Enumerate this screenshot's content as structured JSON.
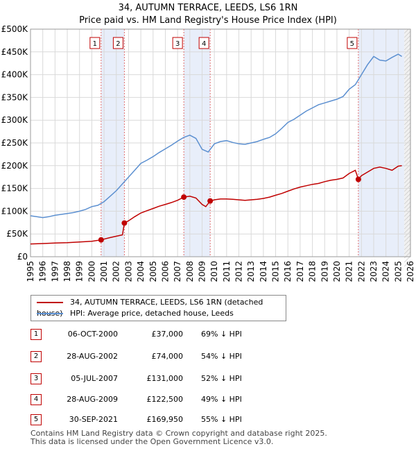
{
  "title": "34, AUTUMN TERRACE, LEEDS, LS6 1RN",
  "subtitle": "Price paid vs. HM Land Registry's House Price Index (HPI)",
  "legend": {
    "property_label": "34, AUTUMN TERRACE, LEEDS, LS6 1RN (detached house)",
    "hpi_label": "HPI: Average price, detached house, Leeds"
  },
  "colors": {
    "property": "#c00000",
    "hpi": "#5b8fd0",
    "shade": "#e8eefa",
    "grid": "#d9d9d9",
    "marker_line": "#e07070"
  },
  "sales": [
    {
      "num": "1",
      "date": "06-OCT-2000",
      "price": "£37,000",
      "pct": "69% ↓ HPI"
    },
    {
      "num": "2",
      "date": "28-AUG-2002",
      "price": "£74,000",
      "pct": "54% ↓ HPI"
    },
    {
      "num": "3",
      "date": "05-JUL-2007",
      "price": "£131,000",
      "pct": "52% ↓ HPI"
    },
    {
      "num": "4",
      "date": "28-AUG-2009",
      "price": "£122,500",
      "pct": "49% ↓ HPI"
    },
    {
      "num": "5",
      "date": "30-SEP-2021",
      "price": "£169,950",
      "pct": "55% ↓ HPI"
    }
  ],
  "footer": {
    "line1": "Contains HM Land Registry data © Crown copyright and database right 2025.",
    "line2": "This data is licensed under the Open Government Licence v3.0."
  },
  "chart_data": {
    "type": "line",
    "title": "34, AUTUMN TERRACE, LEEDS, LS6 1RN",
    "xlabel": "",
    "ylabel": "",
    "xlim": [
      1995,
      2026
    ],
    "ylim": [
      0,
      500000
    ],
    "x_ticks": [
      1995,
      1996,
      1997,
      1998,
      1999,
      2000,
      2001,
      2002,
      2003,
      2004,
      2005,
      2006,
      2007,
      2008,
      2009,
      2010,
      2011,
      2012,
      2013,
      2014,
      2015,
      2016,
      2017,
      2018,
      2019,
      2020,
      2021,
      2022,
      2023,
      2024,
      2025,
      2026
    ],
    "y_ticks": [
      {
        "value": 0,
        "label": "£0"
      },
      {
        "value": 50000,
        "label": "£50K"
      },
      {
        "value": 100000,
        "label": "£100K"
      },
      {
        "value": 150000,
        "label": "£150K"
      },
      {
        "value": 200000,
        "label": "£200K"
      },
      {
        "value": 250000,
        "label": "£250K"
      },
      {
        "value": 300000,
        "label": "£300K"
      },
      {
        "value": 350000,
        "label": "£350K"
      },
      {
        "value": 400000,
        "label": "£400K"
      },
      {
        "value": 450000,
        "label": "£450K"
      },
      {
        "value": 500000,
        "label": "£500K"
      }
    ],
    "grid": true,
    "legend_position": "below",
    "shaded_periods": [
      [
        2000.76,
        2002.66
      ],
      [
        2007.51,
        2009.66
      ],
      [
        2021.75,
        2025.5
      ]
    ],
    "future_region_start": 2025.5,
    "series": [
      {
        "name": "HPI: Average price, detached house, Leeds",
        "x": [
          1995,
          1995.5,
          1996,
          1996.5,
          1997,
          1997.5,
          1998,
          1998.5,
          1999,
          1999.5,
          2000,
          2000.5,
          2001,
          2001.5,
          2002,
          2002.5,
          2003,
          2003.5,
          2004,
          2004.5,
          2005,
          2005.5,
          2006,
          2006.5,
          2007,
          2007.5,
          2008,
          2008.5,
          2009,
          2009.5,
          2010,
          2010.5,
          2011,
          2011.5,
          2012,
          2012.5,
          2013,
          2013.5,
          2014,
          2014.5,
          2015,
          2015.5,
          2016,
          2016.5,
          2017,
          2017.5,
          2018,
          2018.5,
          2019,
          2019.5,
          2020,
          2020.5,
          2021,
          2021.5,
          2022,
          2022.5,
          2023,
          2023.5,
          2024,
          2024.5,
          2025,
          2025.3
        ],
        "values": [
          90000,
          88000,
          86000,
          88000,
          91000,
          93000,
          95000,
          97000,
          100000,
          104000,
          110000,
          113000,
          121000,
          133000,
          145000,
          160000,
          175000,
          190000,
          205000,
          212000,
          220000,
          229000,
          237000,
          245000,
          254000,
          262000,
          267000,
          260000,
          236000,
          230000,
          248000,
          253000,
          255000,
          251000,
          248000,
          247000,
          250000,
          253000,
          258000,
          262000,
          270000,
          282000,
          295000,
          302000,
          311000,
          320000,
          327000,
          334000,
          338000,
          342000,
          346000,
          352000,
          368000,
          378000,
          400000,
          422000,
          440000,
          432000,
          430000,
          438000,
          445000,
          440000
        ]
      },
      {
        "name": "34, AUTUMN TERRACE, LEEDS, LS6 1RN (detached house)",
        "x": [
          1995,
          1996,
          1997,
          1998,
          1999,
          2000,
          2000.76,
          2001.5,
          2002.5,
          2002.66,
          2003,
          2003.5,
          2004,
          2004.5,
          2005,
          2005.5,
          2006,
          2006.5,
          2007,
          2007.51,
          2008,
          2008.5,
          2009,
          2009.3,
          2009.66,
          2010,
          2010.5,
          2011,
          2011.5,
          2012,
          2012.5,
          2013,
          2013.5,
          2014,
          2014.5,
          2015,
          2015.5,
          2016,
          2016.5,
          2017,
          2017.5,
          2018,
          2018.5,
          2019,
          2019.5,
          2020,
          2020.5,
          2021,
          2021.5,
          2021.75,
          2022,
          2022.5,
          2023,
          2023.5,
          2024,
          2024.5,
          2025,
          2025.3
        ],
        "values": [
          28000,
          29000,
          30000,
          31000,
          32500,
          34000,
          37000,
          42000,
          48000,
          74000,
          79000,
          88000,
          96000,
          101000,
          106000,
          111000,
          115000,
          119000,
          124000,
          131000,
          133000,
          129000,
          115000,
          110000,
          122500,
          125000,
          127000,
          127000,
          126000,
          125000,
          124000,
          125000,
          126000,
          128000,
          131000,
          135000,
          139000,
          144000,
          149000,
          153000,
          156000,
          159000,
          161000,
          165000,
          168000,
          170000,
          173000,
          183000,
          190000,
          169950,
          178000,
          186000,
          194000,
          197000,
          194000,
          190000,
          199000,
          200000
        ]
      }
    ],
    "sales_markers": [
      {
        "label": "1",
        "x": 2000.76,
        "value": 37000
      },
      {
        "label": "2",
        "x": 2002.66,
        "value": 74000
      },
      {
        "label": "3",
        "x": 2007.51,
        "value": 131000
      },
      {
        "label": "4",
        "x": 2009.66,
        "value": 122500
      },
      {
        "label": "5",
        "x": 2021.75,
        "value": 169950
      }
    ]
  }
}
